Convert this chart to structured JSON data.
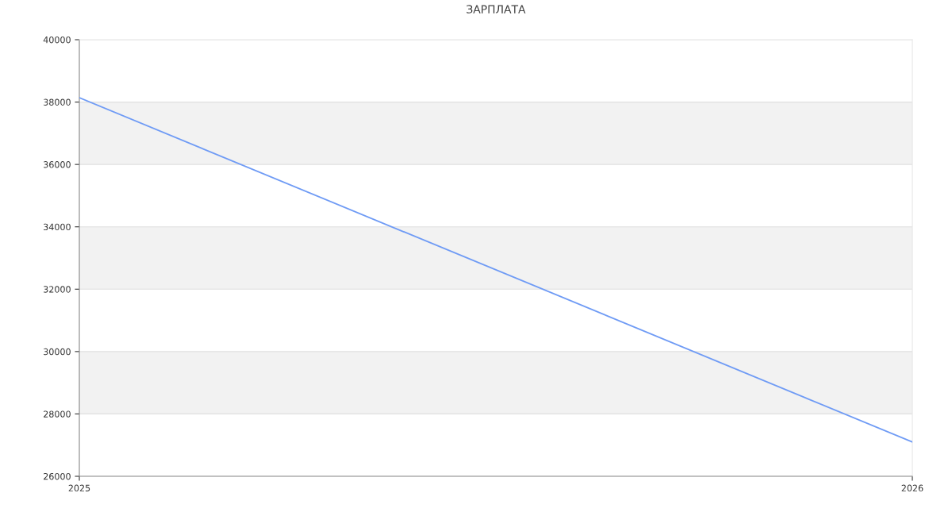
{
  "chart_data": {
    "type": "line",
    "title": "ЗАРПЛАТА",
    "x": [
      "2025",
      "2026"
    ],
    "series": [
      {
        "color": "#6f9bf5",
        "values": [
          38140,
          27100
        ]
      }
    ],
    "xlim": [
      "2025",
      "2026"
    ],
    "xticks": [
      "2025",
      "2026"
    ],
    "ylim": [
      26000,
      40000
    ],
    "yticks": [
      26000,
      28000,
      30000,
      32000,
      34000,
      36000,
      38000,
      40000
    ],
    "bands": [
      {
        "axis": "y",
        "from": 28000,
        "to": 30000,
        "color": "#f2f2f2"
      },
      {
        "axis": "y",
        "from": 32000,
        "to": 34000,
        "color": "#f2f2f2"
      },
      {
        "axis": "y",
        "from": 36000,
        "to": 38000,
        "color": "#f2f2f2"
      }
    ],
    "grid": "y",
    "marker": "none",
    "line_style": "solid"
  }
}
